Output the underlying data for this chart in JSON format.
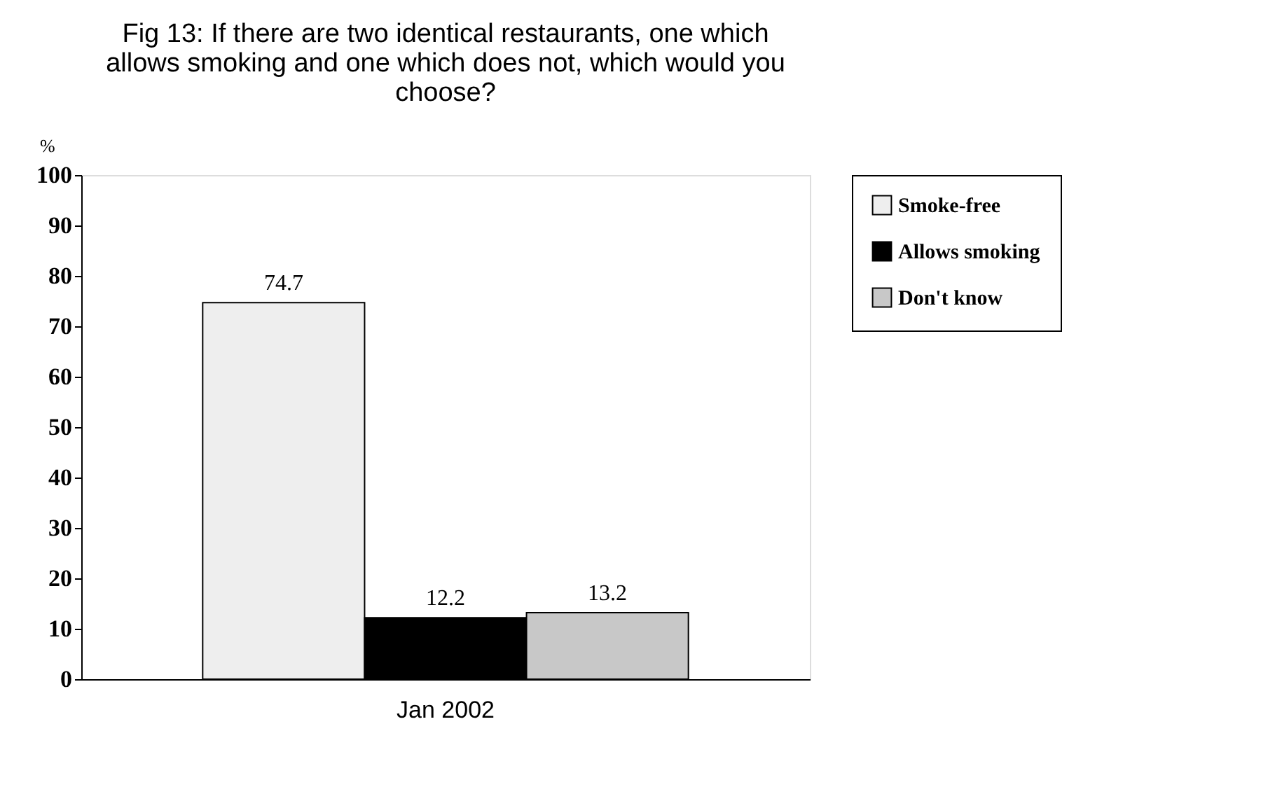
{
  "chart_data": {
    "type": "bar",
    "title": "Fig 13: If there are two identical restaurants, one which allows smoking and one which does not, which would you choose?",
    "ylabel": "%",
    "categories": [
      "Jan 2002"
    ],
    "series": [
      {
        "name": "Smoke-free",
        "color": "#eeeeee",
        "values": [
          74.7
        ]
      },
      {
        "name": "Allows smoking",
        "color": "#000000",
        "values": [
          12.2
        ]
      },
      {
        "name": "Don't know",
        "color": "#c8c8c8",
        "values": [
          13.2
        ]
      }
    ],
    "ylim": [
      0,
      100
    ],
    "yticks": [
      0,
      10,
      20,
      30,
      40,
      50,
      60,
      70,
      80,
      90,
      100
    ],
    "grid": false,
    "legend": "right",
    "data_labels": true
  }
}
